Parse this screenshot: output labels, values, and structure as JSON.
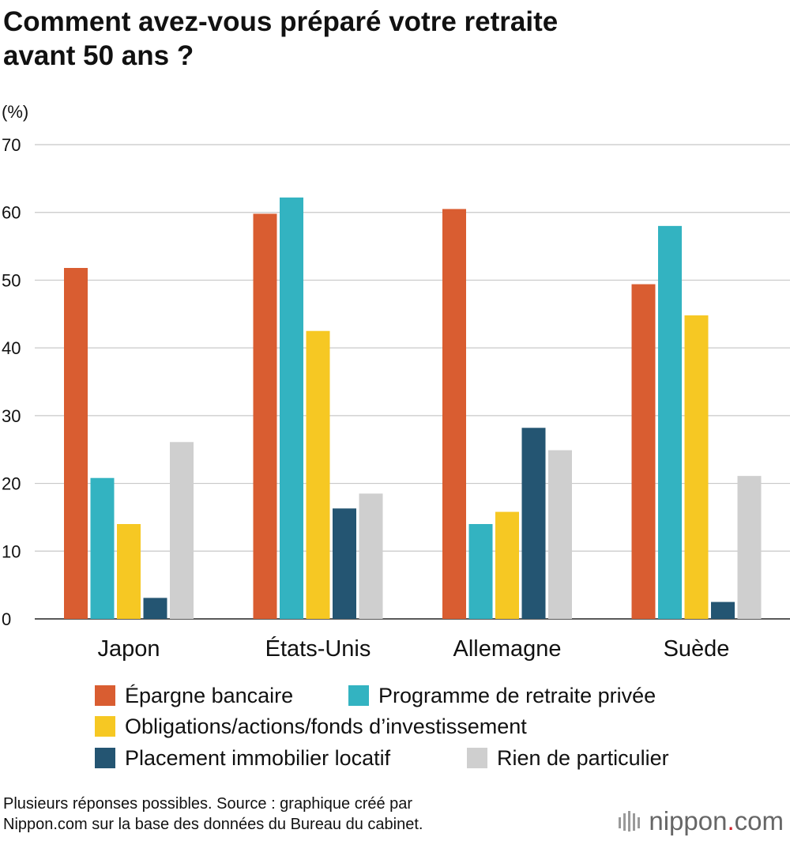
{
  "title_line1": "Comment avez-vous préparé votre retraite",
  "title_line2": "avant 50 ans ?",
  "colors": {
    "epargne": "#d95d31",
    "programme": "#33b3c1",
    "obligations": "#f6c823",
    "placement": "#245572",
    "rien": "#cfcfcf",
    "grid": "#c8c8c8",
    "brand_red": "#d4202a"
  },
  "chart_data": {
    "type": "bar",
    "unit_label": "(%)",
    "ylim": [
      0,
      70
    ],
    "yticks": [
      0,
      10,
      20,
      30,
      40,
      50,
      60,
      70
    ],
    "grid": true,
    "legend_position": "bottom",
    "categories": [
      "Japon",
      "États-Unis",
      "Allemagne",
      "Suède"
    ],
    "series": [
      {
        "name": "Épargne bancaire",
        "color": "#d95d31",
        "values": [
          51.8,
          59.8,
          60.5,
          49.4
        ]
      },
      {
        "name": "Programme de retraite privée",
        "color": "#33b3c1",
        "values": [
          20.8,
          62.2,
          14.0,
          58.0
        ]
      },
      {
        "name": "Obligations/actions/fonds d’investissement",
        "color": "#f6c823",
        "values": [
          14.0,
          42.5,
          15.8,
          44.8
        ]
      },
      {
        "name": "Placement immobilier locatif",
        "color": "#245572",
        "values": [
          3.1,
          16.3,
          28.2,
          2.5
        ]
      },
      {
        "name": "Rien de particulier",
        "color": "#cfcfcf",
        "values": [
          26.1,
          18.5,
          24.9,
          21.1
        ]
      }
    ]
  },
  "footer_line1": "Plusieurs réponses possibles. Source : graphique créé par",
  "footer_line2": "Nippon.com sur la base des données du Bureau du cabinet.",
  "logo": {
    "name": "nippon",
    "dot": ".",
    "suffix": "com",
    "icon": "nippon-fan-logo-icon"
  }
}
